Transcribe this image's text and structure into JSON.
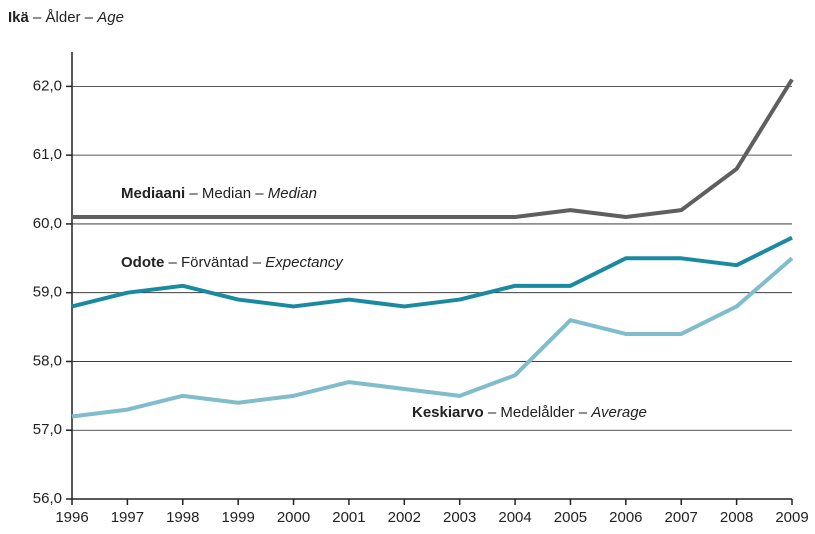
{
  "chart_data": {
    "type": "line",
    "title": [
      "Ikä",
      " – Ålder – ",
      "Age"
    ],
    "x": [
      1996,
      1997,
      1998,
      1999,
      2000,
      2001,
      2002,
      2003,
      2004,
      2005,
      2006,
      2007,
      2008,
      2009
    ],
    "xlim": [
      1996,
      2009
    ],
    "xticks": [
      1996,
      1997,
      1998,
      1999,
      2000,
      2001,
      2002,
      2003,
      2004,
      2005,
      2006,
      2007,
      2008,
      2009
    ],
    "ylim": [
      56,
      62.5
    ],
    "yticks": [
      {
        "value": 56,
        "label": "56,0"
      },
      {
        "value": 57,
        "label": "57,0"
      },
      {
        "value": 58,
        "label": "58,0"
      },
      {
        "value": 59,
        "label": "59,0"
      },
      {
        "value": 60,
        "label": "60,0"
      },
      {
        "value": 61,
        "label": "61,0"
      },
      {
        "value": 62,
        "label": "62,0"
      }
    ],
    "grid": true,
    "series": [
      {
        "name": [
          "Mediaani",
          " – Median – ",
          "Median"
        ],
        "color": "#5f5f5f",
        "values": [
          60.1,
          60.1,
          60.1,
          60.1,
          60.1,
          60.1,
          60.1,
          60.1,
          60.1,
          60.2,
          60.1,
          60.2,
          60.8,
          62.1
        ]
      },
      {
        "name": [
          "Odote",
          " – Förväntad – ",
          "Expectancy"
        ],
        "color": "#1a8aa0",
        "values": [
          58.8,
          59.0,
          59.1,
          58.9,
          58.8,
          58.9,
          58.8,
          58.9,
          59.1,
          59.1,
          59.5,
          59.5,
          59.4,
          59.8
        ]
      },
      {
        "name": [
          "Keskiarvo",
          " – Medelålder – ",
          "Average"
        ],
        "color": "#80bccc",
        "values": [
          57.2,
          57.3,
          57.5,
          57.4,
          57.5,
          57.7,
          57.6,
          57.5,
          57.8,
          58.6,
          58.4,
          58.4,
          58.8,
          59.5
        ]
      }
    ]
  }
}
